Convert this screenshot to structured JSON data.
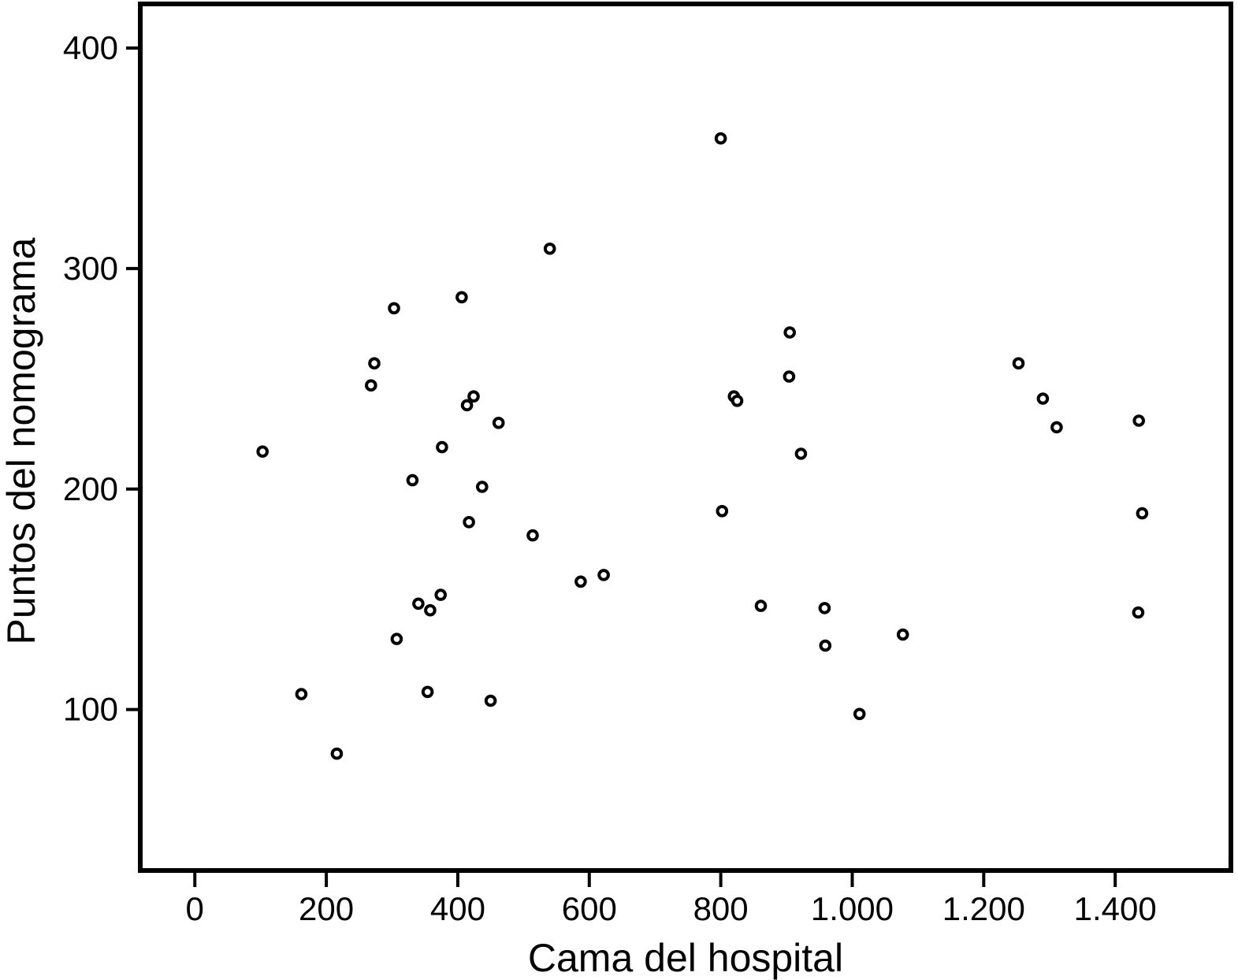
{
  "figure": {
    "background": "#ffffff",
    "text_color": "#000000"
  },
  "chart_data": {
    "type": "scatter",
    "title": "",
    "xlabel": "Cama del hospital",
    "ylabel": "Puntos del nomograma",
    "xlim": [
      -83,
      1576
    ],
    "ylim": [
      27,
      420
    ],
    "x_ticks": [
      0,
      200,
      400,
      600,
      800,
      1000,
      1200,
      1400
    ],
    "x_tick_labels": [
      "0",
      "200",
      "400",
      "600",
      "800",
      "1.000",
      "1.200",
      "1.400"
    ],
    "y_ticks": [
      100,
      200,
      300,
      400
    ],
    "y_tick_labels": [
      "100",
      "200",
      "300",
      "400"
    ],
    "grid": false,
    "legend": null,
    "marker": "open-circle",
    "marker_color": "#000000",
    "marker_fill": "#ffffff",
    "axis_color": "#000000",
    "points": [
      [
        103,
        217
      ],
      [
        162,
        107
      ],
      [
        216,
        80
      ],
      [
        268,
        247
      ],
      [
        273,
        257
      ],
      [
        303,
        282
      ],
      [
        307,
        132
      ],
      [
        331,
        204
      ],
      [
        340,
        148
      ],
      [
        354,
        108
      ],
      [
        358,
        145
      ],
      [
        374,
        152
      ],
      [
        376,
        219
      ],
      [
        406,
        287
      ],
      [
        414,
        238
      ],
      [
        417,
        185
      ],
      [
        424,
        242
      ],
      [
        437,
        201
      ],
      [
        450,
        104
      ],
      [
        462,
        230
      ],
      [
        514,
        179
      ],
      [
        540,
        309
      ],
      [
        587,
        158
      ],
      [
        622,
        161
      ],
      [
        800,
        359
      ],
      [
        802,
        190
      ],
      [
        820,
        242
      ],
      [
        825,
        240
      ],
      [
        861,
        147
      ],
      [
        904,
        251
      ],
      [
        905,
        271
      ],
      [
        922,
        216
      ],
      [
        958,
        146
      ],
      [
        959,
        129
      ],
      [
        1011,
        98
      ],
      [
        1077,
        134
      ],
      [
        1253,
        257
      ],
      [
        1290,
        241
      ],
      [
        1311,
        228
      ],
      [
        1435,
        144
      ],
      [
        1436,
        231
      ],
      [
        1441,
        189
      ]
    ]
  }
}
